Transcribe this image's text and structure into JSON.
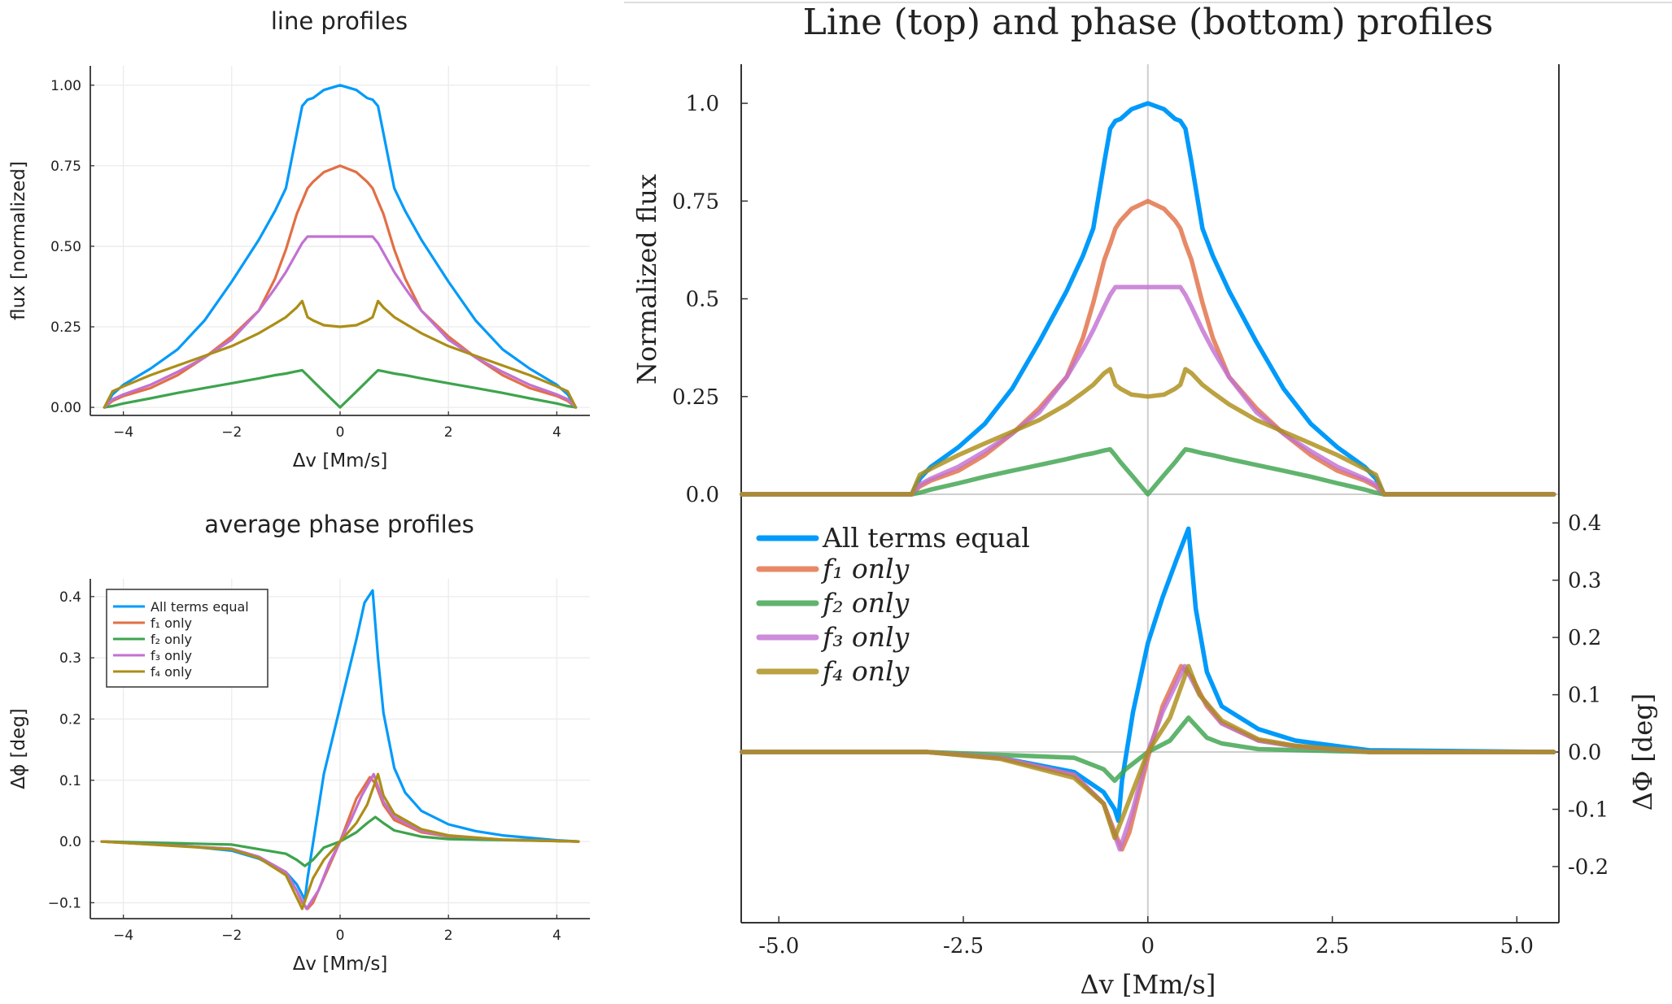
{
  "chart_data": [
    {
      "type": "line",
      "title": "line profiles",
      "xlabel": "Δv [Mm/s]",
      "ylabel": "flux [normalized]",
      "xlim": [
        -4.61,
        4.61
      ],
      "ylim": [
        -0.025,
        1.06
      ],
      "xticks": [
        -4,
        -2,
        0,
        2,
        4
      ],
      "xtick_labels": [
        "−4",
        "−2",
        "0",
        "2",
        "4"
      ],
      "yticks": [
        0,
        0.25,
        0.5,
        0.75,
        1.0
      ],
      "ytick_labels": [
        "0.00",
        "0.25",
        "0.50",
        "0.75",
        "1.00"
      ],
      "grid": true,
      "x": [
        -4.35,
        -4.2,
        -4,
        -3.5,
        -3,
        -2.5,
        -2,
        -1.5,
        -1.2,
        -1,
        -0.8,
        -0.7,
        -0.6,
        -0.5,
        -0.3,
        0,
        0.3,
        0.5,
        0.6,
        0.7,
        0.8,
        1,
        1.2,
        1.5,
        2,
        2.5,
        3,
        3.5,
        4,
        4.2,
        4.35
      ],
      "series": [
        {
          "color": "#009AFA",
          "y": [
            0,
            0.04,
            0.07,
            0.12,
            0.18,
            0.27,
            0.39,
            0.52,
            0.61,
            0.68,
            0.85,
            0.935,
            0.955,
            0.96,
            0.985,
            1.0,
            0.985,
            0.96,
            0.955,
            0.935,
            0.85,
            0.68,
            0.61,
            0.52,
            0.39,
            0.27,
            0.18,
            0.12,
            0.07,
            0.04,
            0
          ]
        },
        {
          "color": "#E26F46",
          "y": [
            0,
            0.02,
            0.035,
            0.06,
            0.1,
            0.155,
            0.22,
            0.3,
            0.4,
            0.49,
            0.6,
            0.64,
            0.68,
            0.7,
            0.73,
            0.75,
            0.73,
            0.7,
            0.68,
            0.64,
            0.6,
            0.49,
            0.4,
            0.3,
            0.22,
            0.155,
            0.1,
            0.06,
            0.035,
            0.02,
            0
          ]
        },
        {
          "color": "#3DA44D",
          "y": [
            0,
            0.004,
            0.012,
            0.028,
            0.045,
            0.06,
            0.075,
            0.09,
            0.1,
            0.105,
            0.112,
            0.115,
            0.099,
            0.082,
            0.049,
            0,
            0.049,
            0.082,
            0.099,
            0.115,
            0.112,
            0.105,
            0.1,
            0.09,
            0.075,
            0.06,
            0.045,
            0.028,
            0.012,
            0.004,
            0
          ]
        },
        {
          "color": "#C271D2",
          "y": [
            0,
            0.025,
            0.04,
            0.07,
            0.11,
            0.155,
            0.21,
            0.3,
            0.37,
            0.42,
            0.48,
            0.51,
            0.53,
            0.53,
            0.53,
            0.53,
            0.53,
            0.53,
            0.53,
            0.51,
            0.48,
            0.42,
            0.37,
            0.3,
            0.21,
            0.155,
            0.11,
            0.07,
            0.04,
            0.025,
            0
          ]
        },
        {
          "color": "#AC8E18",
          "y": [
            0,
            0.05,
            0.065,
            0.1,
            0.13,
            0.16,
            0.19,
            0.23,
            0.26,
            0.28,
            0.31,
            0.33,
            0.28,
            0.27,
            0.255,
            0.25,
            0.255,
            0.27,
            0.28,
            0.33,
            0.31,
            0.28,
            0.26,
            0.23,
            0.19,
            0.16,
            0.13,
            0.1,
            0.065,
            0.05,
            0
          ]
        }
      ]
    },
    {
      "type": "line",
      "title": "average phase profiles",
      "xlabel": "Δv [Mm/s]",
      "ylabel": "Δϕ [deg]",
      "xlim": [
        -4.61,
        4.61
      ],
      "ylim": [
        -0.126,
        0.429
      ],
      "xticks": [
        -4,
        -2,
        0,
        2,
        4
      ],
      "xtick_labels": [
        "−4",
        "−2",
        "0",
        "2",
        "4"
      ],
      "yticks": [
        -0.1,
        0,
        0.1,
        0.2,
        0.3,
        0.4
      ],
      "ytick_labels": [
        "−0.1",
        "0.0",
        "0.1",
        "0.2",
        "0.3",
        "0.4"
      ],
      "grid": true,
      "legend": "top-left",
      "series": [
        {
          "name": "All terms equal",
          "color": "#009AFA",
          "x": [
            -4.4,
            -3,
            -2,
            -1.5,
            -1,
            -0.8,
            -0.65,
            -0.6,
            -0.3,
            0,
            0.3,
            0.45,
            0.6,
            0.7,
            0.8,
            1.0,
            1.2,
            1.5,
            2,
            2.5,
            3,
            4,
            4.4
          ],
          "y": [
            0,
            -0.006,
            -0.015,
            -0.028,
            -0.05,
            -0.07,
            -0.095,
            -0.06,
            0.11,
            0.22,
            0.33,
            0.39,
            0.41,
            0.3,
            0.21,
            0.12,
            0.08,
            0.05,
            0.028,
            0.017,
            0.01,
            0.002,
            0
          ]
        },
        {
          "name": "f₁ only",
          "color": "#E26F46",
          "x": [
            -4.4,
            -2,
            -1.5,
            -1,
            -0.8,
            -0.7,
            -0.6,
            -0.5,
            -0.3,
            0,
            0.3,
            0.55,
            0.65,
            0.8,
            1.0,
            1.5,
            2,
            3,
            4.4
          ],
          "y": [
            0,
            -0.012,
            -0.025,
            -0.05,
            -0.08,
            -0.1,
            -0.11,
            -0.1,
            -0.06,
            0,
            0.07,
            0.105,
            0.095,
            0.06,
            0.035,
            0.015,
            0.008,
            0.003,
            0
          ]
        },
        {
          "name": "f₂ only",
          "color": "#3DA44D",
          "x": [
            -4.4,
            -2,
            -1,
            -0.8,
            -0.65,
            -0.5,
            -0.3,
            0,
            0.3,
            0.5,
            0.65,
            0.8,
            1.0,
            1.5,
            2,
            4.4
          ],
          "y": [
            0,
            -0.005,
            -0.02,
            -0.03,
            -0.04,
            -0.03,
            -0.01,
            0,
            0.015,
            0.03,
            0.04,
            0.03,
            0.018,
            0.008,
            0.004,
            0
          ]
        },
        {
          "name": "f₃ only",
          "color": "#C271D2",
          "x": [
            -4.4,
            -2,
            -1.5,
            -1,
            -0.8,
            -0.62,
            -0.4,
            -0.2,
            0,
            0.2,
            0.4,
            0.62,
            0.8,
            1.0,
            1.5,
            2,
            3,
            4.4
          ],
          "y": [
            0,
            -0.012,
            -0.025,
            -0.05,
            -0.08,
            -0.11,
            -0.08,
            -0.035,
            0,
            0.035,
            0.075,
            0.11,
            0.065,
            0.04,
            0.017,
            0.009,
            0.003,
            0
          ]
        },
        {
          "name": "f₄ only",
          "color": "#AC8E18",
          "x": [
            -4.4,
            -2,
            -1.5,
            -1,
            -0.7,
            -0.5,
            -0.3,
            0,
            0.3,
            0.5,
            0.7,
            0.8,
            1.0,
            1.5,
            2,
            3,
            4.4
          ],
          "y": [
            0,
            -0.013,
            -0.027,
            -0.055,
            -0.11,
            -0.06,
            -0.03,
            0,
            0.03,
            0.06,
            0.11,
            0.075,
            0.045,
            0.02,
            0.01,
            0.003,
            0
          ]
        }
      ]
    },
    {
      "type": "line",
      "title": "Line (top) and phase (bottom) profiles",
      "xlabel": "Δv [Mm/s]",
      "xlim": [
        -5.51,
        5.57
      ],
      "xticks": [
        -5,
        -2.5,
        0,
        2.5,
        5
      ],
      "xtick_labels": [
        "-5.0",
        "-2.5",
        "0",
        "2.5",
        "5.0"
      ],
      "grid": false,
      "legend": "top-left of bottom panel",
      "legend_entries": [
        "All terms equal",
        "f₁ only",
        "f₂ only",
        "f₃ only",
        "f₄ only"
      ],
      "panels": [
        {
          "ylabel": "Normalized flux",
          "yaxis": "left",
          "ylim": [
            0,
            1.1
          ],
          "yticks": [
            0,
            0.25,
            0.5,
            0.75,
            1.0
          ],
          "ytick_labels": [
            "0.0",
            "0.25",
            "0.5",
            "0.75",
            "1.0"
          ],
          "x": [
            -5.5,
            -3.2,
            -3.09,
            -2.94,
            -2.57,
            -2.21,
            -1.84,
            -1.47,
            -1.1,
            -0.88,
            -0.74,
            -0.59,
            -0.51,
            -0.44,
            -0.37,
            -0.22,
            0,
            0.22,
            0.37,
            0.44,
            0.51,
            0.59,
            0.74,
            0.88,
            1.1,
            1.47,
            1.84,
            2.21,
            2.57,
            2.94,
            3.09,
            3.2,
            5.5
          ],
          "series": [
            {
              "color": "#009AFA",
              "y": [
                0,
                0,
                0.04,
                0.07,
                0.12,
                0.18,
                0.27,
                0.39,
                0.52,
                0.61,
                0.68,
                0.85,
                0.935,
                0.955,
                0.96,
                0.985,
                1.0,
                0.985,
                0.96,
                0.955,
                0.935,
                0.85,
                0.68,
                0.61,
                0.52,
                0.39,
                0.27,
                0.18,
                0.12,
                0.07,
                0.04,
                0,
                0
              ]
            },
            {
              "color": "#E26F46",
              "y": [
                0,
                0,
                0.02,
                0.035,
                0.06,
                0.1,
                0.155,
                0.22,
                0.3,
                0.4,
                0.49,
                0.6,
                0.64,
                0.68,
                0.7,
                0.73,
                0.75,
                0.73,
                0.7,
                0.68,
                0.64,
                0.6,
                0.49,
                0.4,
                0.3,
                0.22,
                0.155,
                0.1,
                0.06,
                0.035,
                0.02,
                0,
                0
              ]
            },
            {
              "color": "#3DA44D",
              "y": [
                0,
                0,
                0.004,
                0.012,
                0.028,
                0.045,
                0.06,
                0.075,
                0.09,
                0.1,
                0.105,
                0.112,
                0.115,
                0.099,
                0.082,
                0.049,
                0,
                0.049,
                0.082,
                0.099,
                0.115,
                0.112,
                0.105,
                0.1,
                0.09,
                0.075,
                0.06,
                0.045,
                0.028,
                0.012,
                0.004,
                0,
                0
              ]
            },
            {
              "color": "#C271D2",
              "y": [
                0,
                0,
                0.025,
                0.04,
                0.07,
                0.11,
                0.155,
                0.21,
                0.3,
                0.37,
                0.42,
                0.48,
                0.51,
                0.53,
                0.53,
                0.53,
                0.53,
                0.53,
                0.53,
                0.53,
                0.51,
                0.48,
                0.42,
                0.37,
                0.3,
                0.21,
                0.155,
                0.11,
                0.07,
                0.04,
                0.025,
                0,
                0
              ]
            },
            {
              "color": "#AC8E18",
              "y": [
                0,
                0,
                0.05,
                0.065,
                0.1,
                0.13,
                0.16,
                0.19,
                0.23,
                0.26,
                0.28,
                0.31,
                0.32,
                0.28,
                0.27,
                0.255,
                0.25,
                0.255,
                0.27,
                0.28,
                0.32,
                0.31,
                0.28,
                0.26,
                0.23,
                0.19,
                0.16,
                0.13,
                0.1,
                0.065,
                0.05,
                0,
                0
              ]
            }
          ]
        },
        {
          "ylabel": "ΔΦ [deg]",
          "yaxis": "right",
          "ylim": [
            -0.298,
            0.45
          ],
          "yticks": [
            -0.2,
            -0.1,
            0,
            0.1,
            0.2,
            0.3,
            0.4
          ],
          "ytick_labels": [
            "-0.2",
            "-0.1",
            "0.0",
            "0.1",
            "0.2",
            "0.3",
            "0.4"
          ],
          "series": [
            {
              "name": "All terms equal",
              "color": "#009AFA",
              "x": [
                -5.5,
                -3,
                -2,
                -1,
                -0.6,
                -0.45,
                -0.4,
                -0.35,
                -0.2,
                0,
                0.2,
                0.4,
                0.55,
                0.65,
                0.8,
                1.0,
                1.5,
                2,
                3,
                5.5
              ],
              "y": [
                0,
                0,
                -0.01,
                -0.035,
                -0.07,
                -0.1,
                -0.12,
                -0.05,
                0.07,
                0.19,
                0.27,
                0.34,
                0.39,
                0.25,
                0.14,
                0.08,
                0.04,
                0.02,
                0.003,
                0
              ]
            },
            {
              "name": "f₁ only",
              "color": "#E26F46",
              "x": [
                -5.5,
                -3,
                -2,
                -1,
                -0.6,
                -0.45,
                -0.35,
                -0.25,
                0,
                0.2,
                0.45,
                0.6,
                0.8,
                1,
                1.5,
                2,
                3,
                5.5
              ],
              "y": [
                0,
                0,
                -0.01,
                -0.04,
                -0.09,
                -0.14,
                -0.17,
                -0.14,
                -0.01,
                0.08,
                0.15,
                0.13,
                0.08,
                0.05,
                0.02,
                0.01,
                0,
                0
              ]
            },
            {
              "name": "f₂ only",
              "color": "#3DA44D",
              "x": [
                -5.5,
                -3,
                -1,
                -0.6,
                -0.45,
                -0.3,
                0,
                0.3,
                0.55,
                0.8,
                1.0,
                1.5,
                3,
                5.5
              ],
              "y": [
                0,
                0,
                -0.01,
                -0.03,
                -0.05,
                -0.03,
                0,
                0.02,
                0.06,
                0.025,
                0.015,
                0.005,
                0,
                0
              ]
            },
            {
              "name": "f₃ only",
              "color": "#C271D2",
              "x": [
                -5.5,
                -3,
                -2,
                -1,
                -0.6,
                -0.38,
                -0.2,
                0,
                0.2,
                0.5,
                0.7,
                1,
                1.5,
                2,
                3,
                5.5
              ],
              "y": [
                0,
                0,
                -0.01,
                -0.04,
                -0.09,
                -0.17,
                -0.1,
                0,
                0.07,
                0.15,
                0.1,
                0.05,
                0.02,
                0.01,
                0,
                0
              ]
            },
            {
              "name": "f₄ only",
              "color": "#AC8E18",
              "x": [
                -5.5,
                -3,
                -2,
                -1,
                -0.6,
                -0.45,
                -0.3,
                0,
                0.3,
                0.55,
                0.7,
                1,
                1.5,
                2,
                3,
                5.5
              ],
              "y": [
                0,
                0,
                -0.012,
                -0.045,
                -0.09,
                -0.15,
                -0.1,
                0,
                0.06,
                0.15,
                0.1,
                0.055,
                0.022,
                0.011,
                0,
                0
              ]
            }
          ]
        }
      ]
    }
  ]
}
